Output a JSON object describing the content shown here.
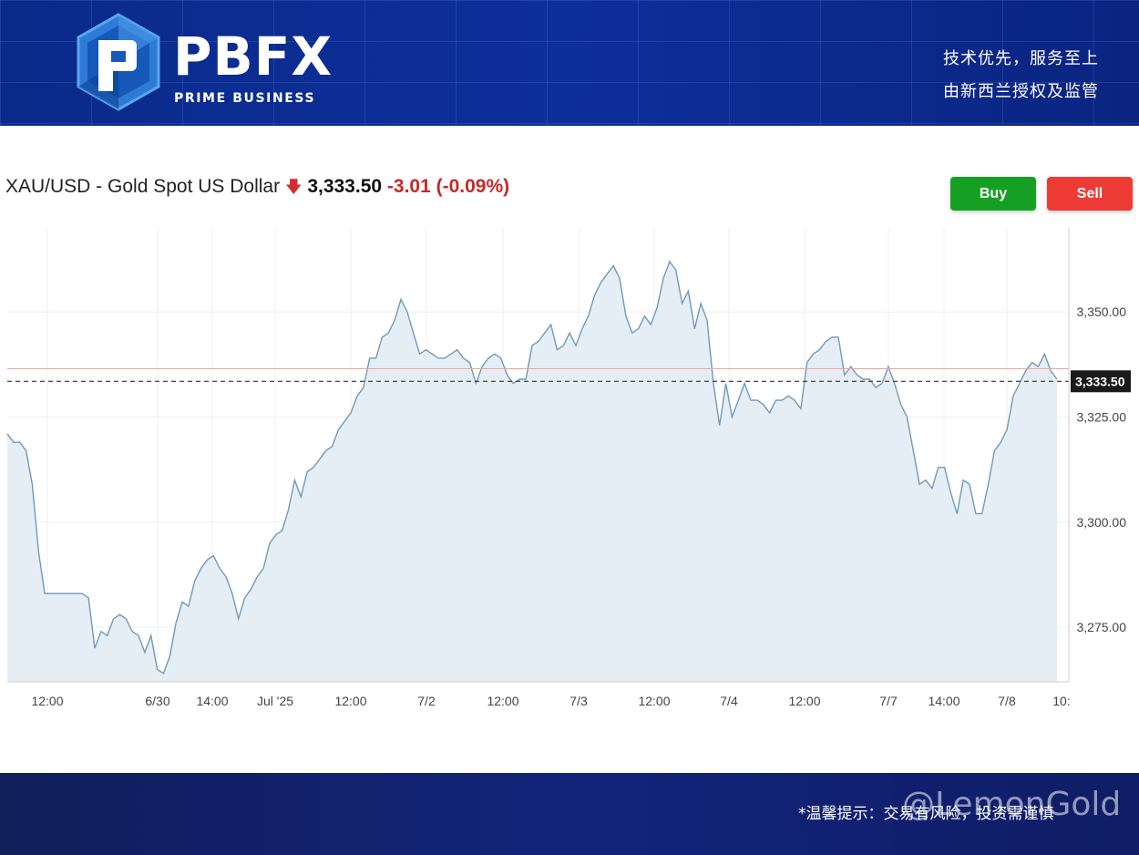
{
  "header": {
    "brand_main": "PBFX",
    "brand_sub": "PRIME BUSINESS",
    "tagline_1": "技术优先，服务至上",
    "tagline_2": "由新西兰授权及监管"
  },
  "quote": {
    "symbol": "XAU/USD - Gold Spot US Dollar",
    "price": "3,333.50",
    "change": "-3.01 (-0.09%)",
    "direction_icon": "down-arrow-icon"
  },
  "actions": {
    "buy_label": "Buy",
    "sell_label": "Sell"
  },
  "footer": {
    "notice": "*温馨提示：交易有风险，投资需谨慎",
    "watermark": "@LemonGold"
  },
  "colors": {
    "up": "#16a023",
    "down": "#ee3b35",
    "line": "#6f9ab9",
    "area": "#e6eef5",
    "header": "#0d2f9a"
  },
  "chart_data": {
    "type": "area",
    "title": "XAU/USD - Gold Spot US Dollar",
    "x_ticks": [
      "12:00",
      "6/30",
      "14:00",
      "Jul '25",
      "12:00",
      "7/2",
      "12:00",
      "7/3",
      "12:00",
      "7/4",
      "12:00",
      "7/7",
      "14:00",
      "7/8",
      "10:"
    ],
    "y_ticks": [
      "3,275.00",
      "3,300.00",
      "3,325.00",
      "3,350.00"
    ],
    "ylim": [
      3262,
      3370
    ],
    "last_price": 3333.5,
    "last_price_label": "3,333.50",
    "reference_line": 3336.5,
    "grid": true,
    "values": [
      3321,
      3319,
      3319,
      3317,
      3309,
      3293,
      3283,
      3283,
      3283,
      3283,
      3283,
      3283,
      3283,
      3282,
      3270,
      3274,
      3273,
      3277,
      3278,
      3277,
      3274,
      3273,
      3269,
      3273,
      3265,
      3264,
      3268,
      3276,
      3281,
      3280,
      3286,
      3289,
      3291,
      3292,
      3289,
      3287,
      3283,
      3277,
      3282,
      3284,
      3287,
      3289,
      3295,
      3297,
      3298,
      3303,
      3310,
      3306,
      3312,
      3313,
      3315,
      3317,
      3318,
      3322,
      3324,
      3326,
      3330,
      3332,
      3339,
      3339,
      3344,
      3345,
      3348,
      3353,
      3350,
      3345,
      3340,
      3341,
      3340,
      3339,
      3339,
      3340,
      3341,
      3339,
      3338,
      3333,
      3337,
      3339,
      3340,
      3339,
      3335,
      3333,
      3334,
      3334,
      3342,
      3343,
      3345,
      3347,
      3341,
      3342,
      3345,
      3342,
      3346,
      3349,
      3354,
      3357,
      3359,
      3361,
      3358,
      3349,
      3345,
      3346,
      3349,
      3347,
      3351,
      3358,
      3362,
      3360,
      3352,
      3355,
      3346,
      3352,
      3348,
      3333,
      3323,
      3333,
      3325,
      3329,
      3333,
      3329,
      3329,
      3328,
      3326,
      3329,
      3329,
      3330,
      3329,
      3327,
      3338,
      3340,
      3341,
      3343,
      3344,
      3344,
      3335,
      3337,
      3335,
      3334,
      3334,
      3332,
      3333,
      3337,
      3333,
      3328,
      3325,
      3317,
      3309,
      3310,
      3308,
      3313,
      3313,
      3307,
      3302,
      3310,
      3309,
      3302,
      3302,
      3309,
      3317,
      3319,
      3322,
      3330,
      3333,
      3336,
      3338,
      3337,
      3340,
      3336,
      3334
    ]
  }
}
